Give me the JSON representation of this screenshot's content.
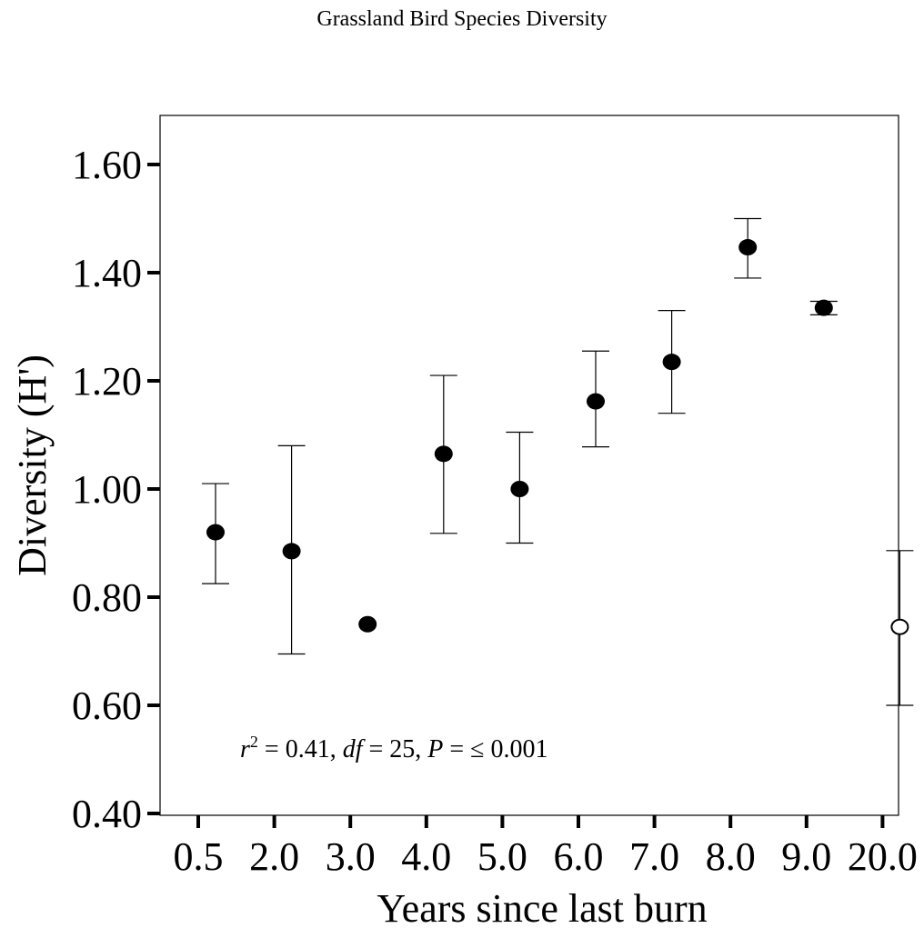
{
  "chart_data": {
    "type": "scatter",
    "title": "Grassland Bird Species Diversity",
    "xlabel": "Years since last burn",
    "ylabel": "Diversity (H')",
    "categories": [
      "0.5",
      "2.0",
      "3.0",
      "4.0",
      "5.0",
      "6.0",
      "7.0",
      "8.0",
      "9.0",
      "20.0"
    ],
    "yticks": [
      "0.40",
      "0.60",
      "0.80",
      "1.00",
      "1.20",
      "1.40",
      "1.60"
    ],
    "ylim": [
      0.4,
      1.7
    ],
    "grid": false,
    "series": [
      {
        "points": [
          {
            "x": "0.5",
            "y": 0.92,
            "err_low": 0.825,
            "err_high": 1.01,
            "filled": true
          },
          {
            "x": "2.0",
            "y": 0.885,
            "err_low": 0.695,
            "err_high": 1.08,
            "filled": true
          },
          {
            "x": "3.0",
            "y": 0.75,
            "err_low": null,
            "err_high": null,
            "filled": true
          },
          {
            "x": "4.0",
            "y": 1.065,
            "err_low": 0.918,
            "err_high": 1.21,
            "filled": true
          },
          {
            "x": "5.0",
            "y": 1.0,
            "err_low": 0.9,
            "err_high": 1.105,
            "filled": true
          },
          {
            "x": "6.0",
            "y": 1.162,
            "err_low": 1.078,
            "err_high": 1.255,
            "filled": true
          },
          {
            "x": "7.0",
            "y": 1.235,
            "err_low": 1.14,
            "err_high": 1.33,
            "filled": true
          },
          {
            "x": "8.0",
            "y": 1.447,
            "err_low": 1.39,
            "err_high": 1.5,
            "filled": true
          },
          {
            "x": "9.0",
            "y": 1.335,
            "err_low": 1.322,
            "err_high": 1.347,
            "filled": true
          },
          {
            "x": "20.0",
            "y": 0.745,
            "err_low": 0.6,
            "err_high": 0.886,
            "filled": false
          }
        ]
      }
    ],
    "annotation": {
      "r_symbol": "r",
      "superscript": "2",
      "r_value": " = 0.41, ",
      "df_symbol": "df",
      "df_value": " = 25, ",
      "p_symbol": "P",
      "p_value": " = ≤ 0.001"
    }
  }
}
